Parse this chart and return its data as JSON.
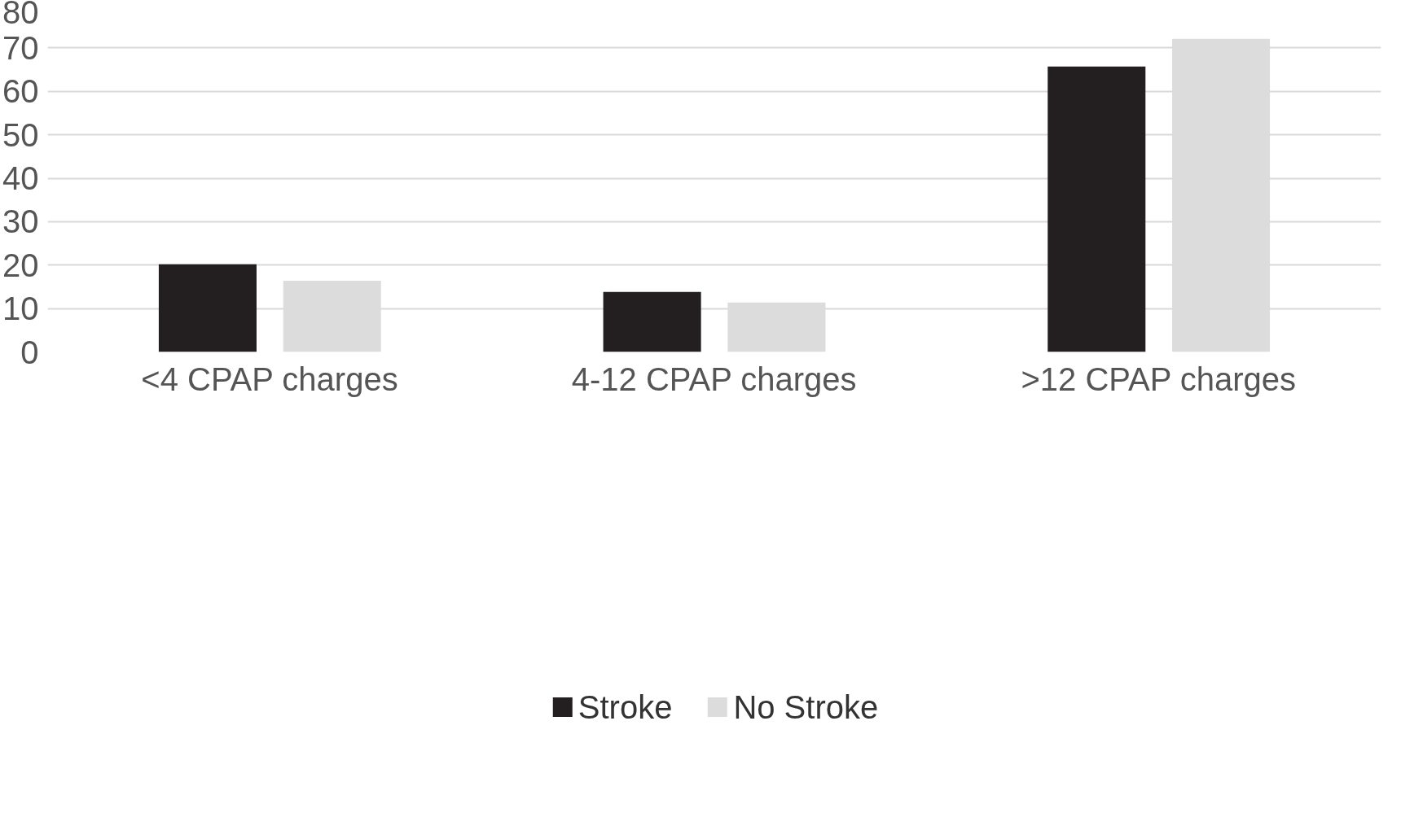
{
  "chart_data": {
    "type": "bar",
    "categories": [
      "<4 CPAP charges",
      "4-12 CPAP charges",
      ">12 CPAP charges"
    ],
    "series": [
      {
        "name": "Stroke",
        "color": "#231f20",
        "values": [
          20.2,
          13.8,
          65.7
        ]
      },
      {
        "name": "No Stroke",
        "color": "#dcdcdc",
        "values": [
          16.4,
          11.4,
          72.1
        ]
      }
    ],
    "ylim": [
      0,
      80
    ],
    "yticks": [
      0,
      10,
      20,
      30,
      40,
      50,
      60,
      70,
      80
    ],
    "grid": "y",
    "legend": "bottom"
  }
}
